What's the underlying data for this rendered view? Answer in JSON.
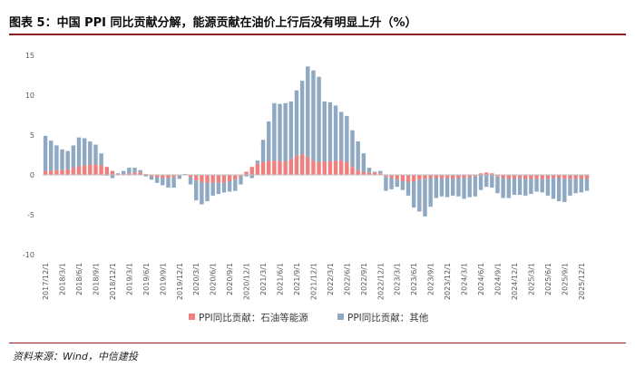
{
  "page": {
    "title": "图表 5：中国 PPI 同比贡献分解，能源贡献在油价上行后没有明显上升（%）",
    "source": "资料来源：Wind，中信建投"
  },
  "colors": {
    "energy": "#f08080",
    "other": "#8ea9c1",
    "axis": "#bfbfbf",
    "text": "#595959",
    "rule": "#8c2020"
  },
  "chart_data": {
    "type": "bar",
    "stacked": true,
    "title": "",
    "xlabel": "",
    "ylabel": "",
    "ylim": [
      -10,
      15
    ],
    "y_ticks": [
      15,
      10,
      5,
      0,
      -5,
      -10
    ],
    "legend_position": "bottom",
    "x_tick_labels": [
      "2017/12/1",
      "2018/3/1",
      "2018/6/1",
      "2018/9/1",
      "2018/12/1",
      "2019/3/1",
      "2019/6/1",
      "2019/9/1",
      "2019/12/1",
      "2020/3/1",
      "2020/6/1",
      "2020/9/1",
      "2020/12/1",
      "2021/3/1",
      "2021/6/1",
      "2021/9/1",
      "2021/12/1",
      "2022/3/1",
      "2022/6/1",
      "2022/9/1",
      "2022/12/1",
      "2023/3/1",
      "2023/6/1",
      "2023/9/1",
      "2023/12/1",
      "2024/3/1",
      "2024/6/1",
      "2024/9/1",
      "2024/12/1",
      "2025/3/1",
      "2025/6/1",
      "2025/9/1",
      "2025/12/1"
    ],
    "x_start": "2017/12",
    "series": [
      {
        "name": "PPI同比贡献：石油等能源",
        "color": "#f08080",
        "values": [
          0.5,
          0.5,
          0.6,
          0.6,
          0.7,
          0.9,
          1.1,
          1.2,
          1.3,
          1.3,
          1.2,
          1.0,
          0.5,
          0.1,
          0.1,
          0.2,
          0.3,
          0.3,
          0.1,
          -0.2,
          -0.3,
          -0.4,
          -0.4,
          -0.3,
          -0.1,
          0.1,
          -0.3,
          -0.7,
          -0.9,
          -1.0,
          -1.0,
          -1.0,
          -1.0,
          -0.8,
          -0.6,
          -0.2,
          0.4,
          1.0,
          1.4,
          1.6,
          1.7,
          1.8,
          1.7,
          1.7,
          2.0,
          2.4,
          2.6,
          2.3,
          1.8,
          1.6,
          1.7,
          1.7,
          1.8,
          1.8,
          1.6,
          1.0,
          0.6,
          0.4,
          0.3,
          0.3,
          0.2,
          -0.2,
          -0.4,
          -0.6,
          -0.8,
          -0.9,
          -0.8,
          -0.6,
          -0.5,
          -0.4,
          -0.4,
          -0.5,
          -0.4,
          -0.5,
          -0.4,
          -0.4,
          -0.3,
          -0.2,
          0.2,
          0.3,
          0.2,
          -0.2,
          -0.4,
          -0.5,
          -0.5,
          -0.4,
          -0.5,
          -0.5,
          -0.5,
          -0.5,
          -0.5,
          -0.4,
          -0.4,
          -0.5,
          -0.5,
          -0.5,
          -0.5,
          -0.5
        ]
      },
      {
        "name": "PPI同比贡献：其他",
        "color": "#8ea9c1",
        "values": [
          4.4,
          3.8,
          3.1,
          2.6,
          2.3,
          2.8,
          3.6,
          3.4,
          2.9,
          2.5,
          1.5,
          -0.1,
          -0.4,
          0.1,
          0.4,
          0.7,
          0.6,
          0.3,
          -0.2,
          -0.4,
          -0.7,
          -0.9,
          -1.2,
          -1.3,
          -0.4,
          0.0,
          -0.9,
          -2.5,
          -2.8,
          -2.3,
          -1.6,
          -1.4,
          -1.2,
          -1.3,
          -1.4,
          -1.0,
          -0.2,
          -0.4,
          0.4,
          2.8,
          5.0,
          7.2,
          7.2,
          7.3,
          7.2,
          8.2,
          9.2,
          11.3,
          11.3,
          10.7,
          7.5,
          7.4,
          6.9,
          6.1,
          5.8,
          4.6,
          3.6,
          2.3,
          0.6,
          0.1,
          0.3,
          -1.8,
          -1.4,
          -0.9,
          -1.1,
          -1.7,
          -3.3,
          -4.0,
          -4.7,
          -3.6,
          -2.5,
          -2.2,
          -2.4,
          -2.1,
          -2.3,
          -2.6,
          -2.5,
          -2.5,
          -1.9,
          -1.5,
          -1.6,
          -2.1,
          -2.5,
          -2.4,
          -2.0,
          -2.1,
          -2.1,
          -1.9,
          -1.6,
          -1.7,
          -2.1,
          -2.6,
          -2.9,
          -2.9,
          -2.1,
          -1.8,
          -1.7,
          -1.5,
          -1.1
        ]
      }
    ]
  }
}
